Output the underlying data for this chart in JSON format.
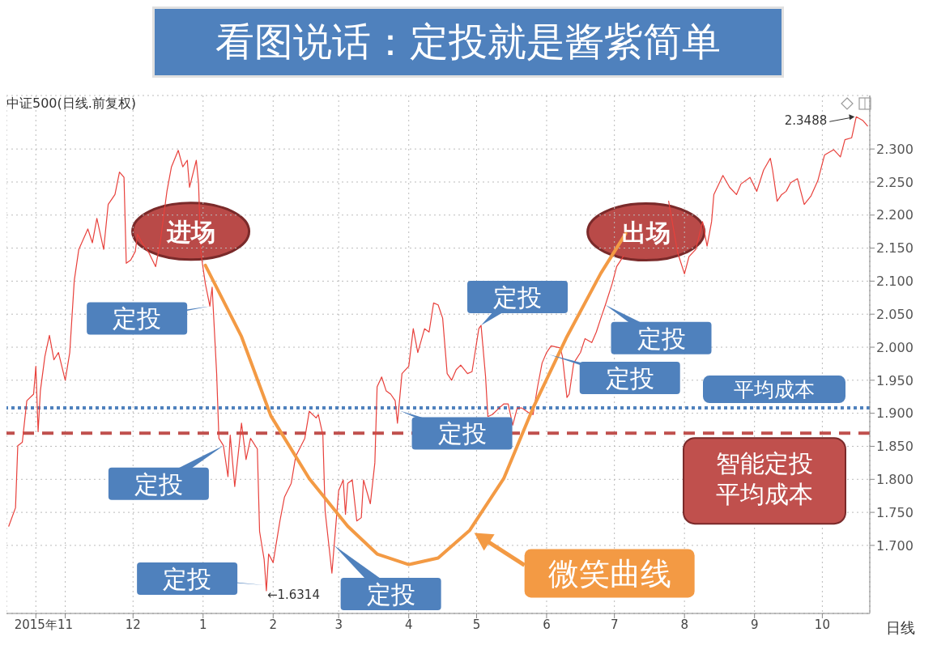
{
  "chart_data": {
    "type": "line",
    "title": "看图说话：定投就是酱紫简单",
    "subtitle": "中证500(日线.前复权)",
    "xlabel": "日线",
    "xlim": [
      "2015-10-06",
      "2016-10-22"
    ],
    "ylim": [
      1.597,
      2.381
    ],
    "xticks": [
      {
        "value": "2015-10-19",
        "label": "2015年"
      },
      {
        "value": "2015-11-01",
        "label": "11"
      },
      {
        "value": "2015-12-01",
        "label": "12"
      },
      {
        "value": "2016-01-01",
        "label": "1"
      },
      {
        "value": "2016-02-01",
        "label": "2"
      },
      {
        "value": "2016-03-01",
        "label": "3"
      },
      {
        "value": "2016-04-01",
        "label": "4"
      },
      {
        "value": "2016-05-01",
        "label": "5"
      },
      {
        "value": "2016-06-01",
        "label": "6"
      },
      {
        "value": "2016-07-01",
        "label": "7"
      },
      {
        "value": "2016-08-01",
        "label": "8"
      },
      {
        "value": "2016-09-01",
        "label": "9"
      },
      {
        "value": "2016-10-01",
        "label": "10"
      }
    ],
    "yticks": [
      {
        "value": 1.7,
        "label": "1.700"
      },
      {
        "value": 1.75,
        "label": "1.750"
      },
      {
        "value": 1.8,
        "label": "1.800"
      },
      {
        "value": 1.85,
        "label": "1.850"
      },
      {
        "value": 1.9,
        "label": "1.900"
      },
      {
        "value": 1.95,
        "label": "1.950"
      },
      {
        "value": 2.0,
        "label": "2.000"
      },
      {
        "value": 2.05,
        "label": "2.050"
      },
      {
        "value": 2.1,
        "label": "2.100"
      },
      {
        "value": 2.15,
        "label": "2.150"
      },
      {
        "value": 2.2,
        "label": "2.200"
      },
      {
        "value": 2.25,
        "label": "2.250"
      },
      {
        "value": 2.3,
        "label": "2.300"
      }
    ],
    "grid": true,
    "series": [
      {
        "color": "#e8413c",
        "x": [
          "2015-10-07",
          "2015-10-10",
          "2015-10-11",
          "2015-10-13",
          "2015-10-15",
          "2015-10-18",
          "2015-10-19",
          "2015-10-20",
          "2015-10-21",
          "2015-10-23",
          "2015-10-25",
          "2015-10-27",
          "2015-10-29",
          "2015-11-01",
          "2015-11-03",
          "2015-11-05",
          "2015-11-07",
          "2015-11-11",
          "2015-11-13",
          "2015-11-15",
          "2015-11-18",
          "2015-11-20",
          "2015-11-23",
          "2015-11-25",
          "2015-11-27",
          "2015-11-28",
          "2015-11-30",
          "2015-12-02",
          "2015-12-03",
          "2015-12-05",
          "2015-12-08",
          "2015-12-11",
          "2015-12-13",
          "2015-12-16",
          "2015-12-18",
          "2015-12-21",
          "2015-12-23",
          "2015-12-25",
          "2015-12-26",
          "2015-12-29",
          "2015-12-30",
          "2015-12-31",
          "2016-01-02",
          "2016-01-04",
          "2016-01-05",
          "2016-01-07",
          "2016-01-08",
          "2016-01-10",
          "2016-01-12",
          "2016-01-13",
          "2016-01-15",
          "2016-01-18",
          "2016-01-20",
          "2016-01-22",
          "2016-01-25",
          "2016-01-26",
          "2016-01-28",
          "2016-01-29",
          "2016-01-30",
          "2016-02-01",
          "2016-02-04",
          "2016-02-06",
          "2016-02-09",
          "2016-02-11",
          "2016-02-15",
          "2016-02-17",
          "2016-02-20",
          "2016-02-21",
          "2016-02-23",
          "2016-02-24",
          "2016-02-27",
          "2016-02-28",
          "2016-03-01",
          "2016-03-03",
          "2016-03-04",
          "2016-03-05",
          "2016-03-07",
          "2016-03-09",
          "2016-03-11",
          "2016-03-12",
          "2016-03-15",
          "2016-03-17",
          "2016-03-18",
          "2016-03-20",
          "2016-03-22",
          "2016-03-24",
          "2016-03-26",
          "2016-03-27",
          "2016-03-29",
          "2016-04-01",
          "2016-04-03",
          "2016-04-05",
          "2016-04-08",
          "2016-04-10",
          "2016-04-12",
          "2016-04-14",
          "2016-04-16",
          "2016-04-18",
          "2016-04-20",
          "2016-04-22",
          "2016-04-24",
          "2016-04-27",
          "2016-04-29",
          "2016-05-02",
          "2016-05-03",
          "2016-05-05",
          "2016-05-06",
          "2016-05-08",
          "2016-05-11",
          "2016-05-13",
          "2016-05-15",
          "2016-05-17",
          "2016-05-19",
          "2016-05-21",
          "2016-05-24",
          "2016-05-26",
          "2016-05-28",
          "2016-05-30",
          "2016-06-01",
          "2016-06-03",
          "2016-06-07",
          "2016-06-08",
          "2016-06-10",
          "2016-06-11",
          "2016-06-13",
          "2016-06-16",
          "2016-06-18",
          "2016-06-21",
          "2016-06-23",
          "2016-06-25",
          "2016-06-27",
          "2016-06-30",
          "2016-07-02",
          "2016-07-05",
          "2016-07-15",
          "2016-07-25",
          "2016-07-29",
          "2016-08-01",
          "2016-08-03",
          "2016-08-06",
          "2016-08-09",
          "2016-08-11",
          "2016-08-13",
          "2016-08-14",
          "2016-08-18",
          "2016-08-21",
          "2016-08-24",
          "2016-08-26",
          "2016-08-30",
          "2016-09-02",
          "2016-09-05",
          "2016-09-08",
          "2016-09-09",
          "2016-09-11",
          "2016-09-13",
          "2016-09-15",
          "2016-09-17",
          "2016-09-20",
          "2016-09-23",
          "2016-09-26",
          "2016-09-29",
          "2016-10-02",
          "2016-10-06",
          "2016-10-09",
          "2016-10-11",
          "2016-10-14",
          "2016-10-16",
          "2016-10-19",
          "2016-10-21"
        ],
        "values": [
          1.729,
          1.757,
          1.851,
          1.856,
          1.919,
          1.929,
          1.971,
          1.872,
          1.934,
          1.986,
          2.018,
          1.981,
          1.992,
          1.95,
          1.992,
          2.101,
          2.148,
          2.179,
          2.158,
          2.195,
          2.148,
          2.216,
          2.231,
          2.265,
          2.257,
          2.127,
          2.132,
          2.145,
          2.171,
          2.158,
          2.143,
          2.122,
          2.158,
          2.236,
          2.273,
          2.298,
          2.273,
          2.283,
          2.242,
          2.283,
          2.247,
          2.143,
          2.096,
          2.062,
          2.091,
          1.96,
          1.862,
          1.851,
          1.804,
          1.867,
          1.789,
          1.885,
          1.83,
          1.862,
          1.846,
          1.721,
          1.679,
          1.6314,
          1.687,
          1.674,
          1.737,
          1.773,
          1.794,
          1.835,
          1.862,
          1.903,
          1.893,
          1.898,
          1.867,
          1.752,
          1.658,
          1.7,
          1.783,
          1.799,
          1.747,
          1.794,
          1.799,
          1.737,
          1.742,
          1.799,
          1.763,
          1.825,
          1.94,
          1.955,
          1.934,
          1.929,
          1.919,
          1.885,
          1.96,
          1.971,
          2.028,
          1.992,
          2.028,
          2.023,
          2.067,
          2.064,
          2.044,
          1.96,
          1.95,
          1.966,
          1.973,
          1.96,
          1.963,
          2.028,
          2.033,
          1.955,
          1.895,
          1.898,
          1.908,
          1.914,
          1.914,
          1.882,
          1.908,
          1.908,
          1.901,
          1.898,
          1.94,
          1.976,
          1.992,
          2.002,
          1.999,
          1.986,
          1.924,
          1.929,
          1.976,
          1.992,
          2.013,
          2.007,
          2.023,
          2.044,
          2.064,
          2.096,
          2.122,
          2.138,
          null,
          2.221,
          2.143,
          2.111,
          2.137,
          2.148,
          2.19,
          2.153,
          2.19,
          2.231,
          2.26,
          2.242,
          2.231,
          2.247,
          2.257,
          2.236,
          2.268,
          2.286,
          2.268,
          2.221,
          2.231,
          2.236,
          2.249,
          2.255,
          2.216,
          2.229,
          2.252,
          2.291,
          2.299,
          2.288,
          2.314,
          2.317,
          2.3488,
          2.343,
          2.335
        ]
      },
      {
        "color": "#f39a44",
        "x": [
          "2016-01-02",
          "2016-01-18",
          "2016-01-31",
          "2016-02-17",
          "2016-03-05",
          "2016-03-18",
          "2016-04-01",
          "2016-04-14",
          "2016-04-28",
          "2016-05-13",
          "2016-05-26",
          "2016-06-10",
          "2016-06-25",
          "2016-07-06"
        ],
        "values": [
          2.124,
          2.016,
          1.896,
          1.801,
          1.729,
          1.687,
          1.671,
          1.681,
          1.723,
          1.801,
          1.908,
          2.016,
          2.112,
          2.172
        ]
      }
    ],
    "ref_lines": [
      {
        "axis": "y",
        "value": 1.908,
        "label": "平均成本",
        "color": "#4f81bd",
        "line_style": "dotted"
      },
      {
        "axis": "y",
        "value": 1.87,
        "label": "智能定投平均成本",
        "color": "#c0504d",
        "line_style": "dashed"
      }
    ],
    "annotations": [
      {
        "text": "进场",
        "x": "2016-01-02",
        "y": 2.124
      },
      {
        "text": "出场",
        "x": "2016-07-06",
        "y": 2.172
      },
      {
        "text": "定投",
        "x": "2016-01-04",
        "y": 2.062
      },
      {
        "text": "定投",
        "x": "2016-01-10",
        "y": 1.851
      },
      {
        "text": "定投",
        "x": "2016-01-28",
        "y": 1.64
      },
      {
        "text": "定投",
        "x": "2016-02-28",
        "y": 1.7
      },
      {
        "text": "定投",
        "x": "2016-03-28",
        "y": 1.904
      },
      {
        "text": "定投",
        "x": "2016-05-03",
        "y": 2.033
      },
      {
        "text": "定投",
        "x": "2016-06-02",
        "y": 1.989
      },
      {
        "text": "定投",
        "x": "2016-06-27",
        "y": 2.064
      },
      {
        "text": "微笑曲线",
        "x": "2016-04-30",
        "y": 1.719
      },
      {
        "text": "2.3488",
        "x": "2016-10-16",
        "y": 2.3488
      },
      {
        "text": "←1.6314",
        "x": "2016-01-29",
        "y": 1.6314
      }
    ]
  }
}
